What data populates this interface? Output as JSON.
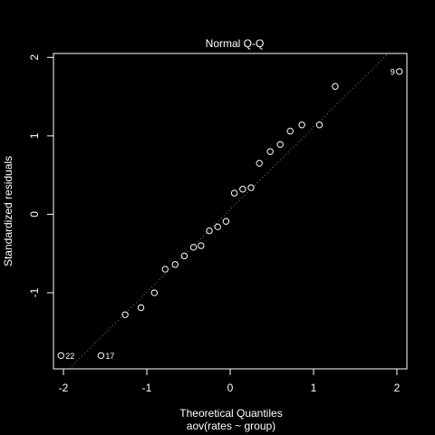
{
  "chart_data": {
    "type": "scatter",
    "title": "Normal Q-Q",
    "xlabel": "Theoretical Quantiles",
    "subtitle": "aov(rates ~ group)",
    "ylabel": "Standardized residuals",
    "xlim": [
      -2.12,
      2.12
    ],
    "ylim": [
      -1.97,
      2.05
    ],
    "x_ticks": [
      -2,
      -1,
      0,
      1,
      2
    ],
    "x_tick_labels": [
      "-2",
      "-1",
      "0",
      "1",
      "2"
    ],
    "y_ticks": [
      -1,
      0,
      1,
      2
    ],
    "y_tick_labels": [
      "-1",
      "0",
      "1",
      "2"
    ],
    "grid": false,
    "reference_line": {
      "style": "dotted",
      "color": "#808080",
      "slope": 1.05,
      "intercept": 0.06
    },
    "points": [
      {
        "x": -2.03,
        "y": -1.8,
        "label": "22"
      },
      {
        "x": -1.55,
        "y": -1.8,
        "label": "17"
      },
      {
        "x": -1.26,
        "y": -1.28
      },
      {
        "x": -1.07,
        "y": -1.19
      },
      {
        "x": -0.91,
        "y": -1.0
      },
      {
        "x": -0.78,
        "y": -0.7
      },
      {
        "x": -0.66,
        "y": -0.64
      },
      {
        "x": -0.55,
        "y": -0.53
      },
      {
        "x": -0.44,
        "y": -0.42
      },
      {
        "x": -0.35,
        "y": -0.4
      },
      {
        "x": -0.25,
        "y": -0.21
      },
      {
        "x": -0.15,
        "y": -0.16
      },
      {
        "x": -0.05,
        "y": -0.09
      },
      {
        "x": 0.05,
        "y": 0.27
      },
      {
        "x": 0.15,
        "y": 0.32
      },
      {
        "x": 0.25,
        "y": 0.34
      },
      {
        "x": 0.35,
        "y": 0.65
      },
      {
        "x": 0.48,
        "y": 0.8
      },
      {
        "x": 0.6,
        "y": 0.89
      },
      {
        "x": 0.72,
        "y": 1.06
      },
      {
        "x": 0.86,
        "y": 1.14
      },
      {
        "x": 1.07,
        "y": 1.14
      },
      {
        "x": 1.26,
        "y": 1.63
      },
      {
        "x": 2.03,
        "y": 1.82,
        "label": "9"
      }
    ],
    "colors": {
      "background": "#000000",
      "foreground": "#ffffff",
      "line": "#808080"
    }
  }
}
